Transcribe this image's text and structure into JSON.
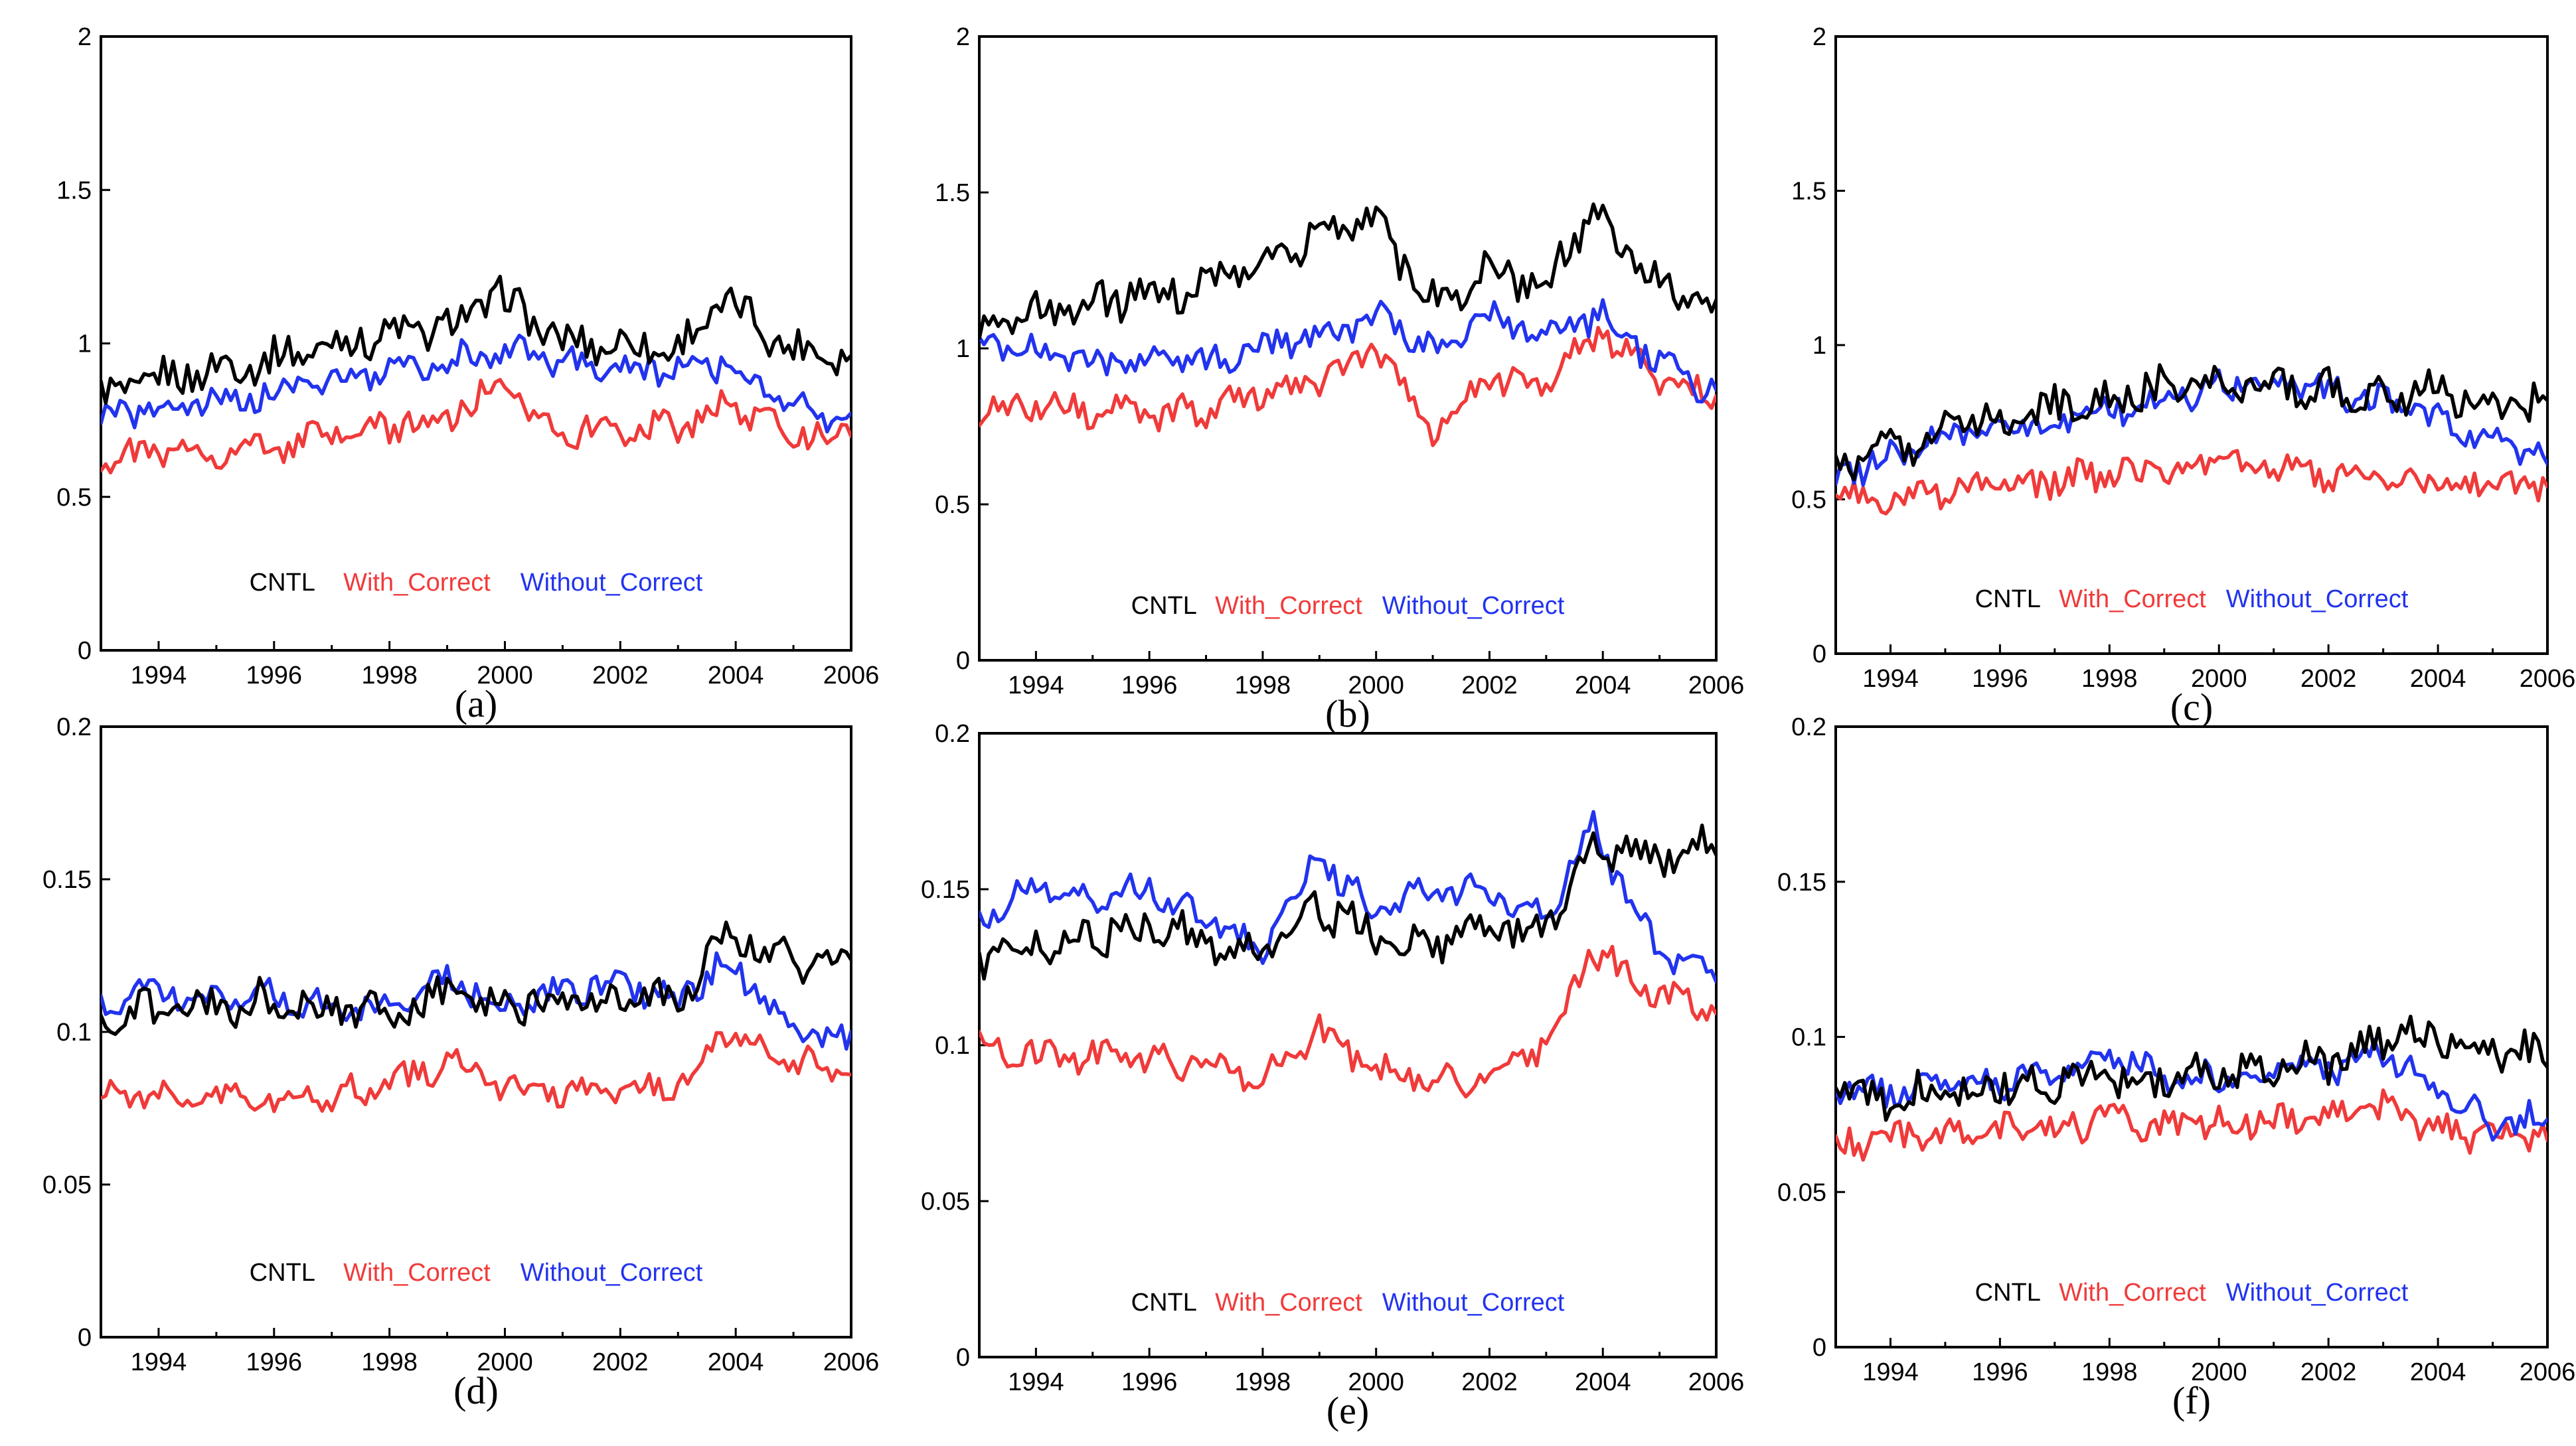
{
  "colors": {
    "CNTL": "#000000",
    "With_Correct": "#f03a3a",
    "Without_Correct": "#2233ee"
  },
  "legend": [
    "CNTL",
    "With_Correct",
    "Without_Correct"
  ],
  "chart_data": [
    {
      "label": "(a)",
      "type": "line",
      "xlim": [
        1993,
        2006
      ],
      "ylim": [
        0,
        2
      ],
      "xticks": [
        "1994",
        "1996",
        "1998",
        "2000",
        "2002",
        "2004",
        "2006"
      ],
      "yticks": [
        "0",
        "0.5",
        "1",
        "1.5",
        "2"
      ],
      "series": [
        {
          "name": "CNTL",
          "x": [
            1993,
            1994,
            1995,
            1996,
            1997,
            1998,
            1999,
            1999.9,
            2001,
            2002,
            2003,
            2003.8,
            2005,
            2006
          ],
          "values": [
            0.82,
            0.88,
            0.92,
            0.95,
            1.0,
            1.03,
            1.05,
            1.16,
            1.0,
            1.0,
            0.98,
            1.14,
            0.98,
            0.97
          ]
        },
        {
          "name": "With_Correct",
          "x": [
            1993,
            1994,
            1995,
            1996,
            1997,
            1998,
            1999,
            1999.9,
            2001,
            2002,
            2003,
            2003.8,
            2005,
            2006
          ],
          "values": [
            0.63,
            0.64,
            0.65,
            0.66,
            0.7,
            0.73,
            0.76,
            0.85,
            0.72,
            0.72,
            0.73,
            0.8,
            0.71,
            0.69
          ]
        },
        {
          "name": "Without_Correct",
          "x": [
            1993,
            1994,
            1995,
            1996,
            1997,
            1998,
            1999,
            2000,
            2001,
            2002,
            2003,
            2003.8,
            2005,
            2006
          ],
          "values": [
            0.75,
            0.79,
            0.81,
            0.84,
            0.88,
            0.91,
            0.94,
            0.98,
            0.93,
            0.92,
            0.91,
            0.94,
            0.79,
            0.74
          ]
        }
      ]
    },
    {
      "label": "(b)",
      "type": "line",
      "xlim": [
        1993,
        2006
      ],
      "ylim": [
        0,
        2
      ],
      "xticks": [
        "1994",
        "1996",
        "1998",
        "2000",
        "2002",
        "2004",
        "2006"
      ],
      "yticks": [
        "0",
        "0.5",
        "1",
        "1.5",
        "2"
      ],
      "series": [
        {
          "name": "CNTL",
          "x": [
            1993,
            1994,
            1995,
            1996,
            1997,
            1998,
            1999,
            1999.8,
            2001,
            2002,
            2003,
            2003.8,
            2005,
            2006
          ],
          "values": [
            1.05,
            1.12,
            1.15,
            1.18,
            1.2,
            1.3,
            1.35,
            1.45,
            1.15,
            1.25,
            1.2,
            1.45,
            1.2,
            1.15
          ]
        },
        {
          "name": "With_Correct",
          "x": [
            1993,
            1994,
            1995,
            1996,
            1997,
            1998,
            1999,
            2000,
            2001,
            2002,
            2003,
            2004,
            2005,
            2006
          ],
          "values": [
            0.8,
            0.82,
            0.8,
            0.78,
            0.8,
            0.85,
            0.9,
            1.0,
            0.75,
            0.9,
            0.9,
            1.05,
            0.9,
            0.85
          ]
        },
        {
          "name": "Without_Correct",
          "x": [
            1993,
            1994,
            1995,
            1996,
            1997,
            1998,
            1999,
            2000,
            2001,
            2002,
            2003,
            2004,
            2005,
            2006
          ],
          "values": [
            1.0,
            1.0,
            0.95,
            0.95,
            0.95,
            1.0,
            1.05,
            1.1,
            1.0,
            1.1,
            1.05,
            1.1,
            0.95,
            0.85
          ]
        }
      ]
    },
    {
      "label": "(c)",
      "type": "line",
      "xlim": [
        1993,
        2006
      ],
      "ylim": [
        0,
        2
      ],
      "xticks": [
        "1994",
        "1996",
        "1998",
        "2000",
        "2002",
        "2004",
        "2006"
      ],
      "yticks": [
        "0",
        "0.5",
        "1",
        "1.5",
        "2"
      ],
      "series": [
        {
          "name": "CNTL",
          "x": [
            1993,
            1994,
            1995,
            1996,
            1997,
            1998,
            1999,
            2000,
            2001,
            2002,
            2003,
            2004,
            2005,
            2006
          ],
          "values": [
            0.6,
            0.66,
            0.72,
            0.76,
            0.8,
            0.83,
            0.86,
            0.9,
            0.88,
            0.85,
            0.84,
            0.85,
            0.8,
            0.82
          ]
        },
        {
          "name": "With_Correct",
          "x": [
            1993,
            1994,
            1995,
            1996,
            1997,
            1998,
            1999,
            2000,
            2001,
            2002,
            2003,
            2004,
            2005,
            2006
          ],
          "values": [
            0.5,
            0.51,
            0.53,
            0.54,
            0.56,
            0.58,
            0.6,
            0.62,
            0.6,
            0.57,
            0.56,
            0.56,
            0.54,
            0.55
          ]
        },
        {
          "name": "Without_Correct",
          "x": [
            1993,
            1994,
            1995,
            1996,
            1997,
            1998,
            1999,
            2000,
            2001,
            2002,
            2003,
            2004,
            2005,
            2006
          ],
          "values": [
            0.57,
            0.64,
            0.7,
            0.73,
            0.75,
            0.78,
            0.82,
            0.86,
            0.88,
            0.85,
            0.82,
            0.76,
            0.68,
            0.63
          ]
        }
      ]
    },
    {
      "label": "(d)",
      "type": "line",
      "xlim": [
        1993,
        2006
      ],
      "ylim": [
        0,
        0.2
      ],
      "xticks": [
        "1994",
        "1996",
        "1998",
        "2000",
        "2002",
        "2004",
        "2006"
      ],
      "yticks": [
        "0",
        "0.05",
        "0.1",
        "0.15",
        "0.2"
      ],
      "series": [
        {
          "name": "CNTL",
          "x": [
            1993,
            1994,
            1995,
            1996,
            1997,
            1998,
            1999,
            2000,
            2001,
            2002,
            2003,
            2003.8,
            2005,
            2006
          ],
          "values": [
            0.105,
            0.107,
            0.109,
            0.11,
            0.107,
            0.106,
            0.112,
            0.108,
            0.11,
            0.112,
            0.11,
            0.132,
            0.122,
            0.125
          ]
        },
        {
          "name": "With_Correct",
          "x": [
            1993,
            1994,
            1995,
            1996,
            1997,
            1998,
            1999,
            2000,
            2001,
            2002,
            2003,
            2003.8,
            2005,
            2006
          ],
          "values": [
            0.08,
            0.079,
            0.078,
            0.078,
            0.079,
            0.082,
            0.09,
            0.082,
            0.08,
            0.08,
            0.082,
            0.1,
            0.09,
            0.088
          ]
        },
        {
          "name": "Without_Correct",
          "x": [
            1993,
            1994,
            1995,
            1996,
            1997,
            1998,
            1999,
            2000,
            2001,
            2002,
            2003,
            2003.8,
            2005,
            2006
          ],
          "values": [
            0.11,
            0.114,
            0.111,
            0.113,
            0.107,
            0.108,
            0.117,
            0.109,
            0.113,
            0.116,
            0.11,
            0.124,
            0.1,
            0.096
          ]
        }
      ]
    },
    {
      "label": "(e)",
      "type": "line",
      "xlim": [
        1993,
        2006
      ],
      "ylim": [
        0,
        0.2
      ],
      "xticks": [
        "1994",
        "1996",
        "1998",
        "2000",
        "2002",
        "2004",
        "2006"
      ],
      "yticks": [
        "0",
        "0.05",
        "0.1",
        "0.15",
        "0.2"
      ],
      "series": [
        {
          "name": "CNTL",
          "x": [
            1993,
            1994,
            1995,
            1996,
            1997,
            1998,
            1999,
            2000,
            2001,
            2002,
            2003,
            2003.8,
            2005,
            2006
          ],
          "values": [
            0.128,
            0.133,
            0.135,
            0.138,
            0.134,
            0.128,
            0.145,
            0.135,
            0.132,
            0.135,
            0.138,
            0.165,
            0.16,
            0.165
          ]
        },
        {
          "name": "With_Correct",
          "x": [
            1993,
            1994,
            1995,
            1996,
            1997,
            1998,
            1999,
            2000,
            2001,
            2002,
            2003,
            2003.8,
            2005,
            2006
          ],
          "values": [
            0.1,
            0.097,
            0.096,
            0.094,
            0.095,
            0.09,
            0.105,
            0.092,
            0.088,
            0.09,
            0.1,
            0.13,
            0.115,
            0.113
          ]
        },
        {
          "name": "Without_Correct",
          "x": [
            1993,
            1994,
            1995,
            1996,
            1997,
            1998,
            1999,
            2000,
            2001,
            2002,
            2003,
            2003.8,
            2005,
            2006
          ],
          "values": [
            0.14,
            0.152,
            0.148,
            0.15,
            0.14,
            0.13,
            0.16,
            0.142,
            0.15,
            0.148,
            0.14,
            0.17,
            0.13,
            0.122
          ]
        }
      ]
    },
    {
      "label": "(f)",
      "type": "line",
      "xlim": [
        1993,
        2006
      ],
      "ylim": [
        0,
        0.2
      ],
      "xticks": [
        "1994",
        "1996",
        "1998",
        "2000",
        "2002",
        "2004",
        "2006"
      ],
      "yticks": [
        "0",
        "0.05",
        "0.1",
        "0.15",
        "0.2"
      ],
      "series": [
        {
          "name": "CNTL",
          "x": [
            1993,
            1994,
            1995,
            1996,
            1997,
            1998,
            1999,
            2000,
            2001,
            2002,
            2003,
            2004,
            2005,
            2006
          ],
          "values": [
            0.082,
            0.08,
            0.083,
            0.085,
            0.086,
            0.088,
            0.086,
            0.087,
            0.089,
            0.092,
            0.1,
            0.1,
            0.096,
            0.095
          ]
        },
        {
          "name": "With_Correct",
          "x": [
            1993,
            1994,
            1995,
            1996,
            1997,
            1998,
            1999,
            2000,
            2001,
            2002,
            2003,
            2004,
            2005,
            2006
          ],
          "values": [
            0.065,
            0.068,
            0.069,
            0.07,
            0.07,
            0.074,
            0.071,
            0.072,
            0.073,
            0.073,
            0.077,
            0.071,
            0.067,
            0.068
          ]
        },
        {
          "name": "Without_Correct",
          "x": [
            1993,
            1994,
            1995,
            1996,
            1997,
            1998,
            1999,
            2000,
            2001,
            2002,
            2003,
            2004,
            2005,
            2006
          ],
          "values": [
            0.085,
            0.082,
            0.085,
            0.085,
            0.087,
            0.093,
            0.087,
            0.087,
            0.089,
            0.09,
            0.095,
            0.085,
            0.07,
            0.076
          ]
        }
      ]
    }
  ]
}
